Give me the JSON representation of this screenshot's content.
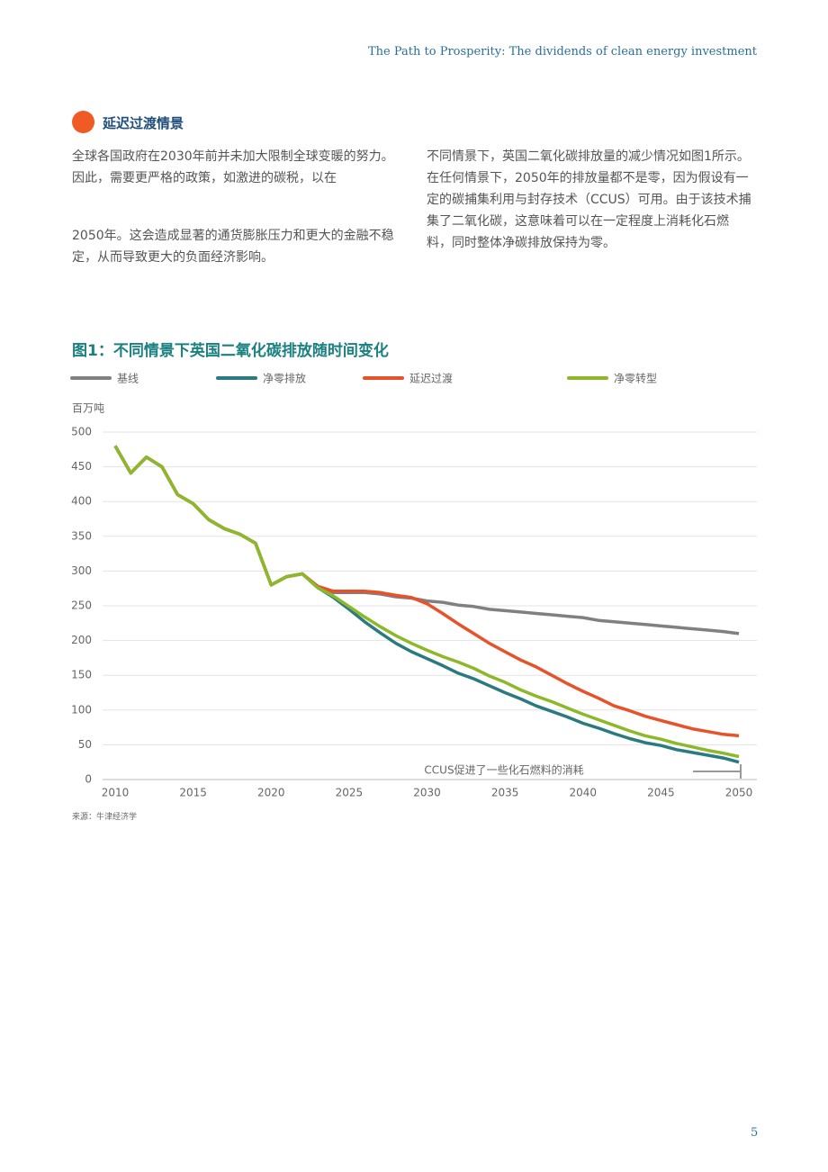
{
  "header": {
    "title": "The Path to Prosperity: The dividends of clean energy investment"
  },
  "section": {
    "heading": "延迟过渡情景",
    "left_paragraphs": [
      "全球各国政府在2030年前并未加大限制全球变暖的努力。因此，需要更严格的政策，如激进的碳税，以在",
      "2050年。这会造成显著的通货膨胀压力和更大的金融不稳定，从而导致更大的负面经济影响。"
    ],
    "right_paragraph": "不同情景下，英国二氧化碳排放量的减少情况如图1所示。在任何情景下，2050年的排放量都不是零，因为假设有一定的碳捕集利用与封存技术（CCUS）可用。由于该技术捕集了二氧化碳，这意味着可以在一定程度上消耗化石燃料，同时整体净碳排放保持为零。"
  },
  "chart_data": {
    "type": "line",
    "title": "图1：不同情景下英国二氧化碳排放随时间变化",
    "y_label": "百万吨",
    "x": [
      2010,
      2011,
      2012,
      2013,
      2014,
      2015,
      2016,
      2017,
      2018,
      2019,
      2020,
      2021,
      2022,
      2023,
      2024,
      2025,
      2026,
      2027,
      2028,
      2029,
      2030,
      2031,
      2032,
      2033,
      2034,
      2035,
      2036,
      2037,
      2038,
      2039,
      2040,
      2041,
      2042,
      2043,
      2044,
      2045,
      2046,
      2047,
      2048,
      2049,
      2050
    ],
    "xlim": [
      2007,
      2051
    ],
    "xticks": [
      2010,
      2015,
      2020,
      2025,
      2030,
      2035,
      2040,
      2045,
      2050
    ],
    "ylim": [
      0,
      500
    ],
    "yticks": [
      0,
      50,
      100,
      150,
      200,
      250,
      300,
      350,
      400,
      450,
      500
    ],
    "grid": true,
    "series": [
      {
        "name": "基线",
        "color": "#808080",
        "values": [
          480,
          441,
          464,
          450,
          410,
          397,
          374,
          361,
          353,
          340,
          280,
          292,
          296,
          276,
          269,
          269,
          269,
          267,
          263,
          261,
          257,
          255,
          251,
          249,
          245,
          243,
          241,
          239,
          237,
          235,
          233,
          229,
          227,
          225,
          223,
          221,
          219,
          217,
          215,
          213,
          210
        ]
      },
      {
        "name": "净零排放",
        "color": "#2a7b80",
        "values": [
          480,
          441,
          464,
          450,
          410,
          397,
          374,
          361,
          353,
          340,
          280,
          292,
          296,
          276,
          262,
          245,
          227,
          211,
          196,
          184,
          174,
          164,
          153,
          145,
          135,
          125,
          116,
          106,
          98,
          90,
          81,
          74,
          66,
          59,
          53,
          49,
          43,
          39,
          35,
          31,
          25
        ]
      },
      {
        "name": "延迟过渡",
        "color": "#e8522a",
        "values": [
          480,
          441,
          464,
          450,
          410,
          397,
          374,
          361,
          353,
          340,
          280,
          292,
          296,
          278,
          271,
          271,
          271,
          269,
          265,
          262,
          253,
          239,
          224,
          210,
          196,
          184,
          172,
          162,
          150,
          138,
          127,
          117,
          106,
          99,
          91,
          85,
          79,
          73,
          69,
          65,
          63
        ]
      },
      {
        "name": "净零转型",
        "color": "#8db82a",
        "values": [
          480,
          441,
          464,
          450,
          410,
          397,
          374,
          361,
          353,
          340,
          280,
          292,
          296,
          276,
          264,
          249,
          234,
          220,
          207,
          196,
          186,
          177,
          169,
          160,
          149,
          140,
          129,
          120,
          112,
          103,
          94,
          86,
          78,
          70,
          63,
          58,
          52,
          47,
          42,
          38,
          33
        ]
      }
    ],
    "annotation": "CCUS促进了一些化石燃料的消耗",
    "source": "来源：牛津经济学"
  },
  "page_number": "5"
}
